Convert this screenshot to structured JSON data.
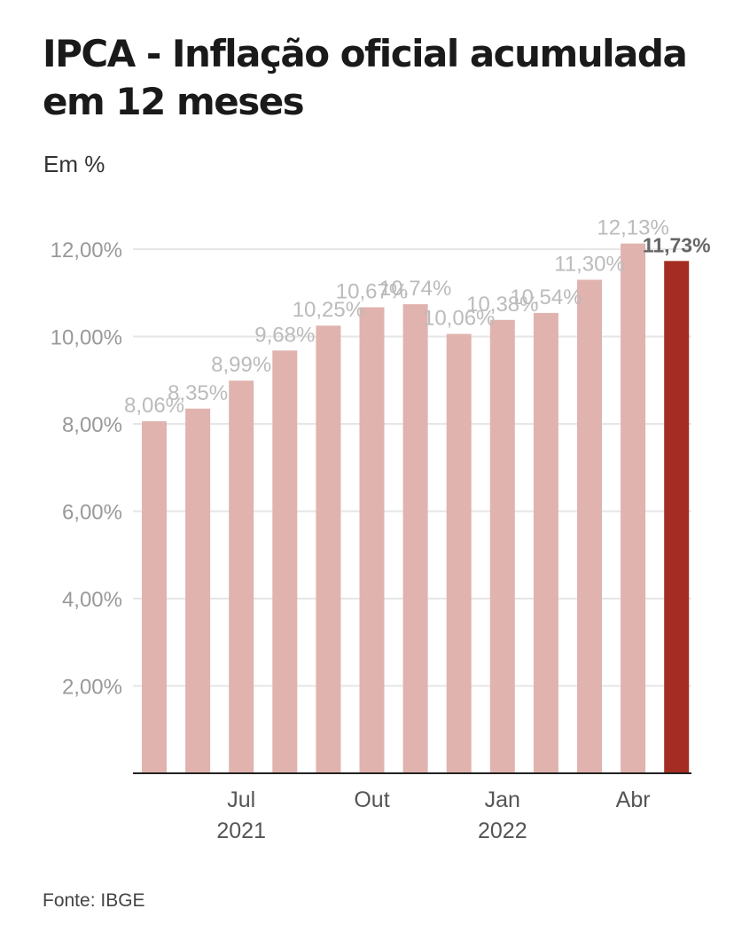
{
  "title": "IPCA - Inflação oficial acumulada em 12 meses",
  "unit_label": "Em %",
  "source": "Fonte: IBGE",
  "colors": {
    "bar": "#e0b3ae",
    "highlight": "#a52c22",
    "grid": "#e6e6e6",
    "axis": "#222222",
    "tick_text": "#999999",
    "label_text": "#bbbbbb",
    "highlight_label": "#666666"
  },
  "chart_data": {
    "type": "bar",
    "title": "IPCA - Inflação oficial acumulada em 12 meses",
    "ylabel": "Em %",
    "ylim": [
      0,
      13
    ],
    "y_ticks": [
      {
        "value": 2,
        "label": "2,00%"
      },
      {
        "value": 4,
        "label": "4,00%"
      },
      {
        "value": 6,
        "label": "6,00%"
      },
      {
        "value": 8,
        "label": "8,00%"
      },
      {
        "value": 10,
        "label": "10,00%"
      },
      {
        "value": 12,
        "label": "12,00%"
      }
    ],
    "x_ticks": [
      {
        "index": 2,
        "month": "Jul",
        "year": "2021"
      },
      {
        "index": 5,
        "month": "Out",
        "year": ""
      },
      {
        "index": 8,
        "month": "Jan",
        "year": "2022"
      },
      {
        "index": 11,
        "month": "Abr",
        "year": ""
      }
    ],
    "grid": true,
    "highlight_index": 12,
    "values": [
      8.06,
      8.35,
      8.99,
      9.68,
      10.25,
      10.67,
      10.74,
      10.06,
      10.38,
      10.54,
      11.3,
      12.13,
      11.73
    ],
    "value_labels": [
      "8,06%",
      "8,35%",
      "8,99%",
      "9,68%",
      "10,25%",
      "10,67%",
      "10,74%",
      "10,06%",
      "10,38%",
      "10,54%",
      "11,30%",
      "12,13%",
      "11,73%"
    ]
  }
}
